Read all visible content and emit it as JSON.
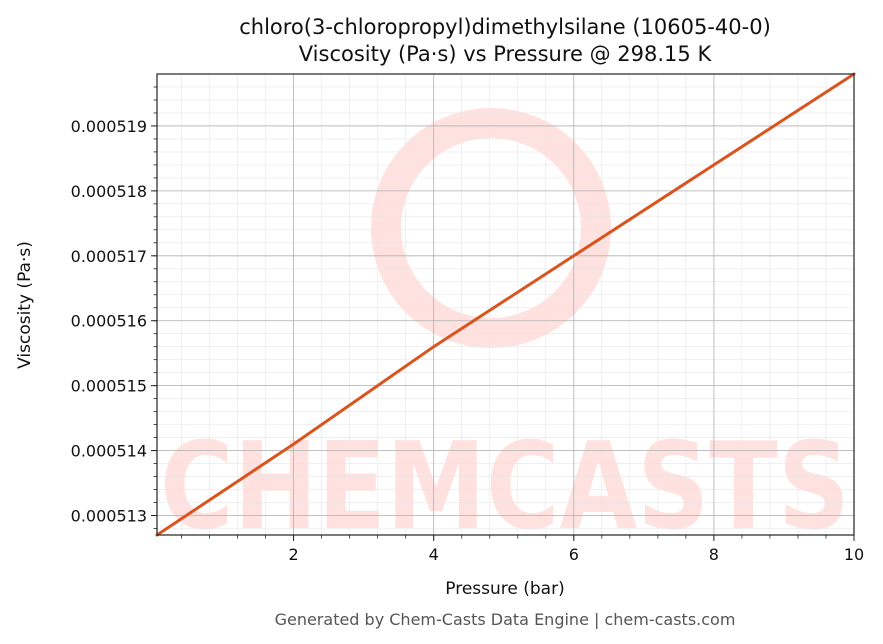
{
  "chart_data": {
    "type": "line",
    "title": "chloro(3-chloropropyl)dimethylsilane (10605-40-0)",
    "subtitle": "Viscosity (Pa·s) vs Pressure @ 298.15 K",
    "xlabel": "Pressure (bar)",
    "ylabel": "Viscosity (Pa·s)",
    "xlim": [
      0.05,
      10
    ],
    "ylim": [
      0.0005127,
      0.0005198
    ],
    "x_ticks": [
      2,
      4,
      6,
      8,
      10
    ],
    "x_tick_labels": [
      "2",
      "4",
      "6",
      "8",
      "10"
    ],
    "y_ticks": [
      0.000513,
      0.000514,
      0.000515,
      0.000516,
      0.000517,
      0.000518,
      0.000519
    ],
    "y_tick_labels": [
      "0.000513",
      "0.000514",
      "0.000515",
      "0.000516",
      "0.000517",
      "0.000518",
      "0.000519"
    ],
    "grid": true,
    "series": [
      {
        "x": [
          0.05,
          2,
          4,
          6,
          8,
          10
        ],
        "values": [
          0.0005127,
          0.0005141,
          0.0005156,
          0.000517,
          0.0005184,
          0.0005198
        ],
        "color": "#d9541e"
      }
    ]
  },
  "watermark": {
    "text": "CHEMCASTS",
    "color": "#ffe2e0"
  },
  "footer": {
    "text": "Generated by Chem-Casts Data Engine | chem-casts.com"
  }
}
